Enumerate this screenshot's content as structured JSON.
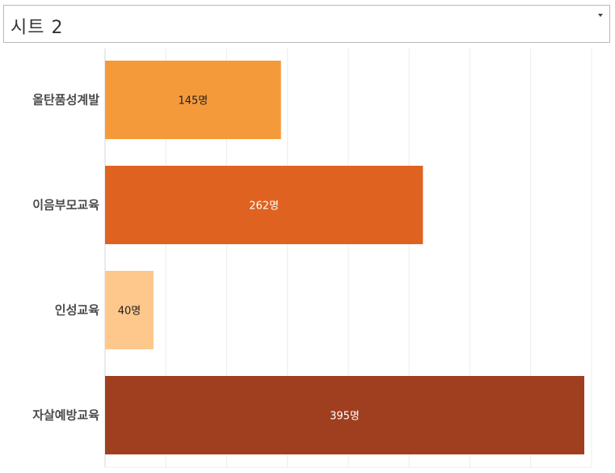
{
  "sheet": {
    "title": "시트 2"
  },
  "colors": {
    "background": "#ffffff",
    "gridline": "#ececec",
    "axis": "#d6d6d6",
    "category_text": "#4a4a4a"
  },
  "chart_data": {
    "type": "bar",
    "orientation": "horizontal",
    "categories": [
      "올탄품성계발",
      "이음부모교육",
      "인성교육",
      "자살예방교육"
    ],
    "values": [
      145,
      262,
      40,
      395
    ],
    "data_labels": [
      "145명",
      "262명",
      "40명",
      "395명"
    ],
    "unit": "명",
    "colors": [
      "#f59a3a",
      "#df6221",
      "#fec78c",
      "#a03e20"
    ],
    "label_colors": [
      "#222222",
      "#ffffff",
      "#222222",
      "#ffffff"
    ],
    "xlim": [
      0,
      400
    ],
    "grid": true,
    "xaxis_tick_labels_shown": false,
    "legend": "none"
  }
}
